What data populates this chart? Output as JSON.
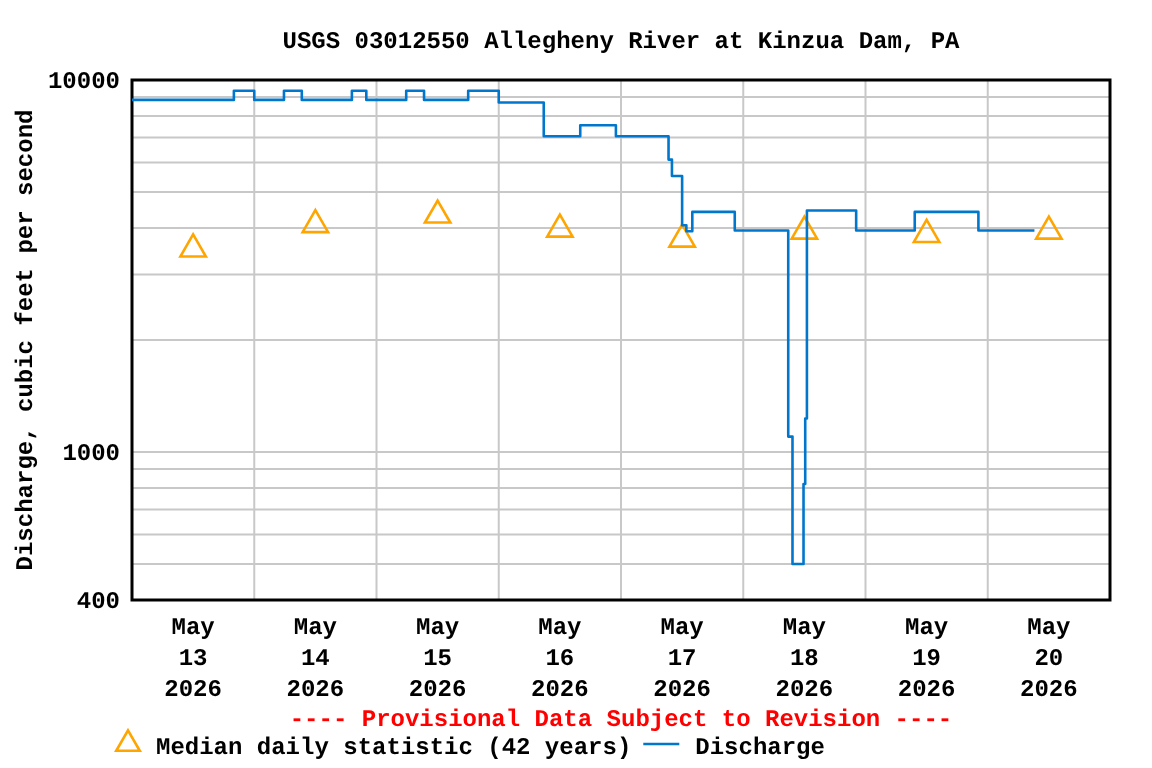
{
  "chart_data": {
    "type": "line",
    "title": "USGS 03012550 Allegheny River at Kinzua Dam, PA",
    "ylabel": "Discharge, cubic feet per second",
    "annotations": [
      "---- Provisional Data Subject to Revision ----"
    ],
    "log": true,
    "grid": true,
    "legend": "bottom",
    "xlim": [
      "2026-05-13T00:00",
      "2026-05-21T00:00"
    ],
    "xticks": [
      {
        "value": "2026-05-13T12:00",
        "label": "May\n13\n2026"
      },
      {
        "value": "2026-05-14T00:00",
        "label": null
      },
      {
        "value": "2026-05-14T12:00",
        "label": "May\n14\n2026"
      },
      {
        "value": "2026-05-15T00:00",
        "label": null
      },
      {
        "value": "2026-05-15T12:00",
        "label": "May\n15\n2026"
      },
      {
        "value": "2026-05-16T00:00",
        "label": null
      },
      {
        "value": "2026-05-16T12:00",
        "label": "May\n16\n2026"
      },
      {
        "value": "2026-05-17T00:00",
        "label": null
      },
      {
        "value": "2026-05-17T12:00",
        "label": "May\n17\n2026"
      },
      {
        "value": "2026-05-18T00:00",
        "label": null
      },
      {
        "value": "2026-05-18T12:00",
        "label": "May\n18\n2026"
      },
      {
        "value": "2026-05-19T00:00",
        "label": null
      },
      {
        "value": "2026-05-19T12:00",
        "label": "May\n19\n2026"
      },
      {
        "value": "2026-05-20T00:00",
        "label": null
      },
      {
        "value": "2026-05-20T12:00",
        "label": "May\n20\n2026"
      }
    ],
    "ylim": [
      400,
      10000
    ],
    "yticks": [
      400,
      {
        "value": 500,
        "label": null
      },
      {
        "value": 600,
        "label": null
      },
      {
        "value": 700,
        "label": null
      },
      {
        "value": 800,
        "label": null
      },
      {
        "value": 900,
        "label": null
      },
      1000,
      {
        "value": 2000,
        "label": null
      },
      {
        "value": 3000,
        "label": null
      },
      {
        "value": 4000,
        "label": null
      },
      {
        "value": 5000,
        "label": null
      },
      {
        "value": 6000,
        "label": null
      },
      {
        "value": 7000,
        "label": null
      },
      {
        "value": 8000,
        "label": null
      },
      {
        "value": 9000,
        "label": null
      },
      10000
    ],
    "series": [
      {
        "name": "Median daily statistic (42 years)",
        "type": "scatter",
        "marker": "triangle",
        "color": "#ffa500",
        "x": [
          "2026-05-13T12:00",
          "2026-05-14T12:00",
          "2026-05-15T12:00",
          "2026-05-16T12:00",
          "2026-05-17T12:00",
          "2026-05-18T12:00",
          "2026-05-19T12:00",
          "2026-05-20T12:00"
        ],
        "values": [
          3510,
          4080,
          4330,
          3970,
          3730,
          3920,
          3840,
          3920
        ]
      },
      {
        "name": "Discharge",
        "type": "step",
        "color": "#0077cc",
        "x": [
          "2026-05-13T00:00",
          "2026-05-13T20:00",
          "2026-05-14T00:00",
          "2026-05-14T05:50",
          "2026-05-14T09:20",
          "2026-05-14T19:10",
          "2026-05-14T22:00",
          "2026-05-15T05:50",
          "2026-05-15T09:20",
          "2026-05-15T18:00",
          "2026-05-16T00:00",
          "2026-05-16T08:50",
          "2026-05-16T16:00",
          "2026-05-16T23:00",
          "2026-05-17T09:20",
          "2026-05-17T10:00",
          "2026-05-17T12:00",
          "2026-05-17T12:50",
          "2026-05-17T14:00",
          "2026-05-17T22:20",
          "2026-05-18T08:50",
          "2026-05-18T09:40",
          "2026-05-18T11:50",
          "2026-05-18T12:10",
          "2026-05-18T12:30",
          "2026-05-18T22:10",
          "2026-05-19T09:40",
          "2026-05-19T22:10",
          "2026-05-20T09:10"
        ],
        "values": [
          8840,
          9360,
          8840,
          9360,
          8840,
          9360,
          8840,
          9360,
          8840,
          9360,
          8700,
          7060,
          7560,
          7060,
          6110,
          5520,
          4070,
          3920,
          4420,
          3940,
          1100,
          500,
          820,
          1230,
          4460,
          3940,
          4420,
          3940,
          3940
        ]
      }
    ]
  }
}
